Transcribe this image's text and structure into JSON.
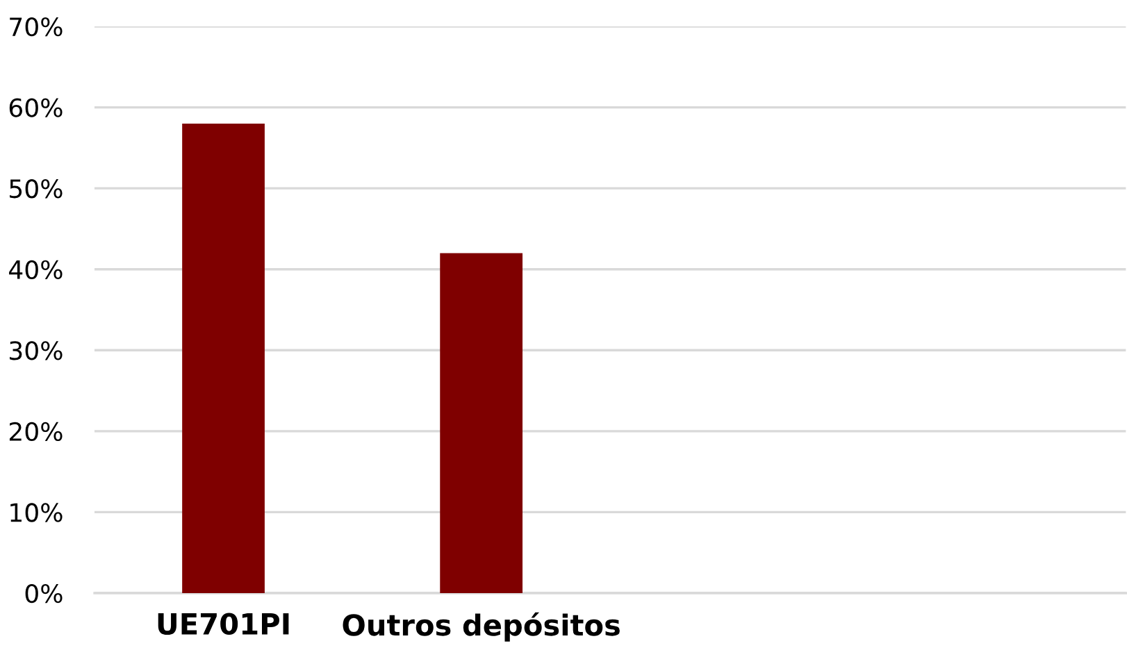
{
  "chart_data": {
    "type": "bar",
    "categories": [
      "UE701PI",
      "Outros depósitos",
      null,
      null
    ],
    "values": [
      58,
      42,
      null,
      null
    ],
    "color": "#7f0000",
    "ylim": [
      0,
      70
    ],
    "yticks": [
      {
        "value": 0,
        "label": "0%"
      },
      {
        "value": 10,
        "label": "10%"
      },
      {
        "value": 20,
        "label": "20%"
      },
      {
        "value": 30,
        "label": "30%"
      },
      {
        "value": 40,
        "label": "40%"
      },
      {
        "value": 50,
        "label": "50%"
      },
      {
        "value": 60,
        "label": "60%"
      },
      {
        "value": 70,
        "label": "70%"
      }
    ],
    "grid": "y",
    "legend": false
  }
}
